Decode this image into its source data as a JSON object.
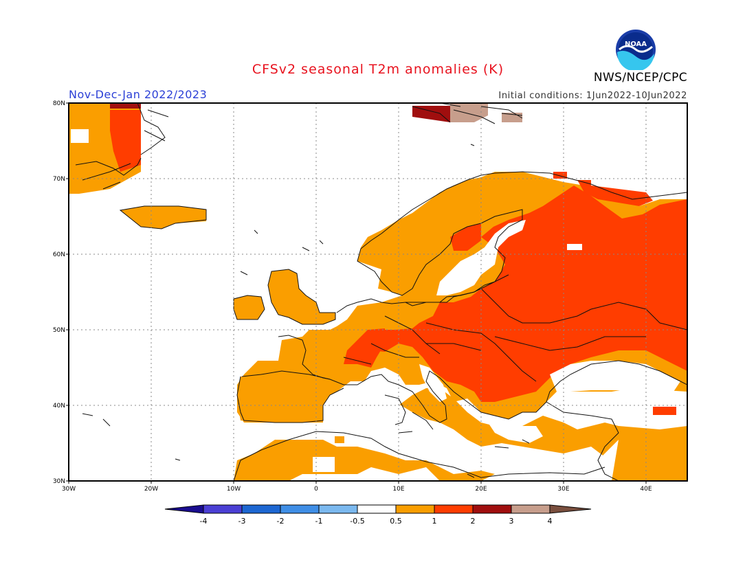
{
  "header": {
    "title": "CFSv2 seasonal T2m anomalies (K)",
    "period": "Nov-Dec-Jan 2022/2023",
    "initial_conditions": "Initial conditions: 1Jun2022-10Jun2022",
    "agency": "NWS/NCEP/CPC",
    "logo_text": "NOAA"
  },
  "map": {
    "lat_labels": [
      "80N",
      "70N",
      "60N",
      "50N",
      "40N",
      "30N"
    ],
    "lon_labels": [
      "30W",
      "20W",
      "10W",
      "0",
      "10E",
      "20E",
      "30E",
      "40E"
    ],
    "lon_range": [
      -30,
      45
    ],
    "lat_range": [
      30,
      80
    ],
    "colors": {
      "land_outline": "#111111",
      "grid": "#888888",
      "frame": "#000000"
    }
  },
  "legend": {
    "labels": [
      "-4",
      "-3",
      "-2",
      "-1",
      "-0.5",
      "0.5",
      "1",
      "2",
      "3",
      "4"
    ],
    "colors": [
      "#1a0c8f",
      "#4b3fd4",
      "#1d67d2",
      "#3f8ee6",
      "#7bb9ef",
      "#ffffff",
      "#fa9e00",
      "#ff3d00",
      "#a00e0e",
      "#c79e8c",
      "#7a4f3e"
    ]
  }
}
